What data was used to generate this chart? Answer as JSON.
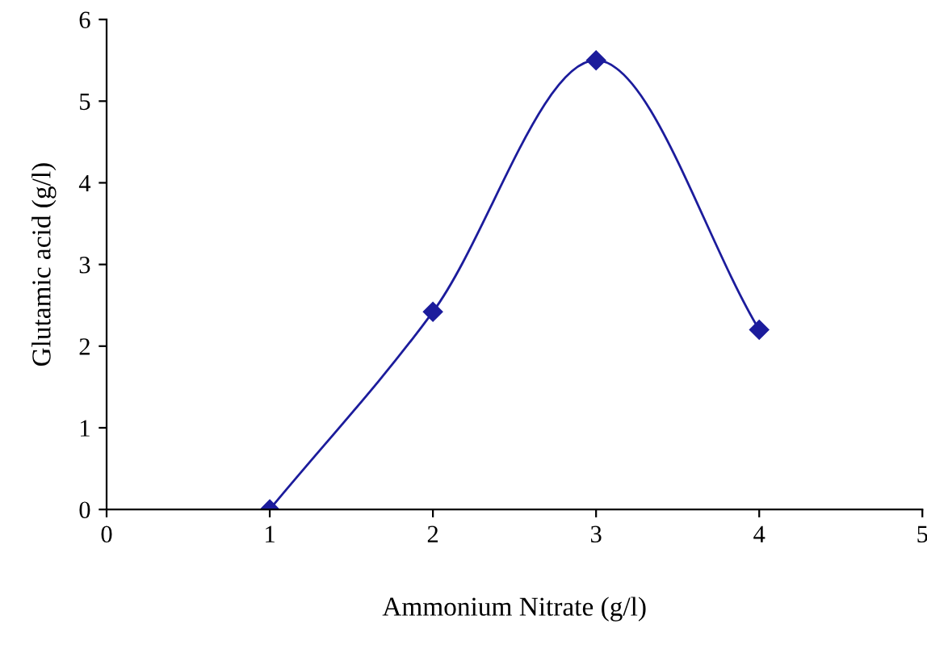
{
  "chart_data": {
    "type": "line",
    "xlabel": "Ammonium Nitrate (g/l)",
    "ylabel": "Glutamic acid (g/l)",
    "x": [
      1,
      2,
      3,
      4
    ],
    "series": [
      {
        "color": "#1c1c9c",
        "values": [
          0,
          2.42,
          5.5,
          2.2
        ]
      }
    ],
    "xlim": [
      0,
      5
    ],
    "xticks": [
      0,
      1,
      2,
      3,
      4,
      5
    ],
    "ylim": [
      0,
      6
    ],
    "yticks": [
      0,
      1,
      2,
      3,
      4,
      5,
      6
    ],
    "grid": false,
    "legend": false,
    "marker": "diamond",
    "line_style": "solid"
  }
}
